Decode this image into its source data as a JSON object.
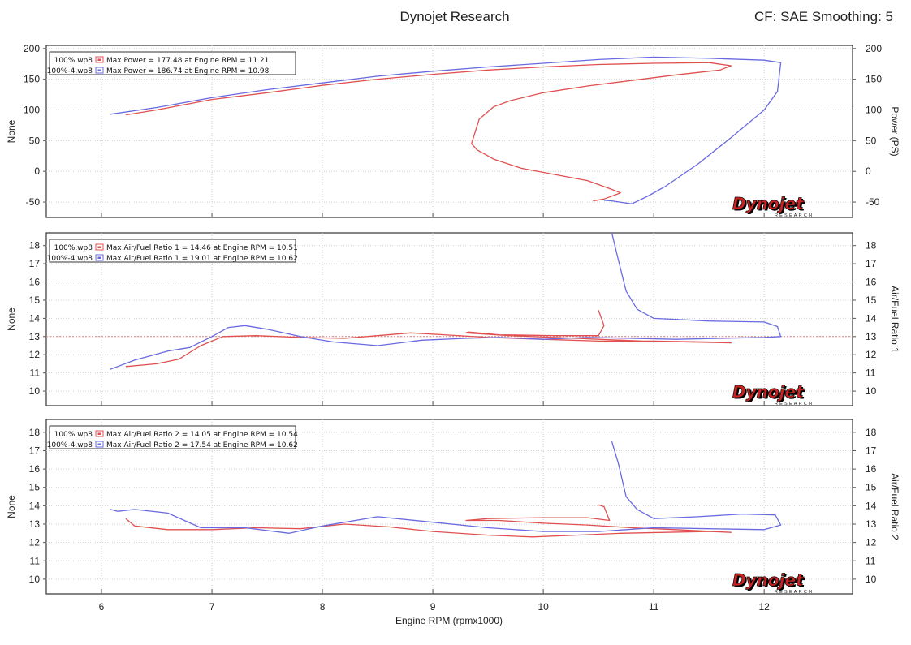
{
  "header": {
    "title": "Dynojet Research",
    "settings": "CF: SAE Smoothing: 5"
  },
  "xaxis": {
    "label": "Engine RPM (rpmx1000)",
    "range": [
      5.5,
      12.8
    ],
    "ticks": [
      6,
      7,
      8,
      9,
      10,
      11,
      12
    ]
  },
  "logo": {
    "brand": "Dynojet",
    "sub": "RESEARCH"
  },
  "colors": {
    "run1": "#e05050",
    "run2": "#6a6ae0"
  },
  "chart_data": [
    {
      "type": "line",
      "ylabel_left": "None",
      "ylabel_right": "Power (PS)",
      "ylim": [
        -75,
        205
      ],
      "yticks": [
        -50,
        0,
        50,
        100,
        150,
        200
      ],
      "legend": [
        {
          "run": "100%.wp8",
          "text": "Max Power = 177.48 at Engine RPM = 11.21"
        },
        {
          "run": "100%-4.wp8",
          "text": "Max Power = 186.74 at Engine RPM = 10.98"
        }
      ],
      "series": [
        {
          "name": "100%.wp8",
          "color": "#e05050",
          "x": [
            6.22,
            6.5,
            7.0,
            7.5,
            8.0,
            8.5,
            9.0,
            9.5,
            10.0,
            10.5,
            11.0,
            11.5,
            11.7,
            11.6,
            11.2,
            10.8,
            10.4,
            10.0,
            9.7,
            9.55,
            9.42,
            9.35,
            9.4,
            9.55,
            9.8,
            10.1,
            10.4,
            10.6,
            10.7,
            10.55,
            10.45
          ],
          "y": [
            92,
            100,
            117,
            128,
            140,
            150,
            158,
            165,
            170,
            174,
            176,
            177,
            172,
            165,
            157,
            148,
            139,
            128,
            115,
            105,
            85,
            45,
            35,
            20,
            5,
            -5,
            -15,
            -28,
            -35,
            -45,
            -48
          ]
        },
        {
          "name": "100%-4.wp8",
          "color": "#6a6ae0",
          "x": [
            6.08,
            6.5,
            7.0,
            7.5,
            8.0,
            8.5,
            9.0,
            9.5,
            10.0,
            10.5,
            11.0,
            11.5,
            12.0,
            12.15,
            12.12,
            12.0,
            11.7,
            11.4,
            11.1,
            10.95,
            10.8,
            10.62,
            10.55
          ],
          "y": [
            93,
            104,
            120,
            133,
            144,
            155,
            163,
            170,
            176,
            182,
            186,
            184,
            181,
            177,
            130,
            100,
            55,
            12,
            -25,
            -40,
            -53,
            -48,
            -47
          ]
        }
      ]
    },
    {
      "type": "line",
      "ylabel_left": "None",
      "ylabel_right": "Air/Fuel Ratio 1",
      "ylim": [
        9.2,
        18.7
      ],
      "yticks": [
        10,
        11,
        12,
        13,
        14,
        15,
        16,
        17,
        18
      ],
      "ref_line": 13,
      "legend": [
        {
          "run": "100%.wp8",
          "text": "Max Air/Fuel Ratio 1 = 14.46 at Engine RPM = 10.51"
        },
        {
          "run": "100%-4.wp8",
          "text": "Max Air/Fuel Ratio 1 = 19.01 at Engine RPM = 10.62"
        }
      ],
      "series": [
        {
          "name": "100%.wp8",
          "color": "#e05050",
          "x": [
            6.22,
            6.5,
            6.7,
            6.9,
            7.1,
            7.4,
            7.8,
            8.2,
            8.5,
            8.8,
            9.1,
            9.5,
            10.0,
            10.5,
            11.0,
            11.5,
            11.7,
            11.3,
            10.9,
            10.5,
            10.1,
            9.7,
            9.3,
            9.32,
            9.6,
            10.1,
            10.5,
            10.55,
            10.5
          ],
          "y": [
            11.35,
            11.5,
            11.75,
            12.5,
            13.0,
            13.05,
            12.95,
            12.9,
            13.05,
            13.2,
            13.1,
            12.95,
            12.85,
            12.75,
            12.75,
            12.7,
            12.65,
            12.7,
            12.75,
            12.85,
            12.95,
            13.05,
            13.2,
            13.25,
            13.1,
            13.05,
            13.05,
            13.6,
            14.45
          ]
        },
        {
          "name": "100%-4.wp8",
          "color": "#6a6ae0",
          "x": [
            6.08,
            6.3,
            6.6,
            6.8,
            7.0,
            7.15,
            7.3,
            7.5,
            7.8,
            8.1,
            8.5,
            8.9,
            9.3,
            9.6,
            10.0,
            10.4,
            10.8,
            11.2,
            11.6,
            12.0,
            12.15,
            12.12,
            12.0,
            11.5,
            11.0,
            10.85,
            10.75,
            10.68,
            10.62
          ],
          "y": [
            11.2,
            11.7,
            12.2,
            12.4,
            13.0,
            13.5,
            13.6,
            13.4,
            13.0,
            12.7,
            12.5,
            12.8,
            12.9,
            12.95,
            12.85,
            12.95,
            12.9,
            12.85,
            12.9,
            12.95,
            13.0,
            13.55,
            13.8,
            13.85,
            14.0,
            14.5,
            15.5,
            17.2,
            18.7
          ]
        }
      ]
    },
    {
      "type": "line",
      "ylabel_left": "None",
      "ylabel_right": "Air/Fuel Ratio 2",
      "ylim": [
        9.2,
        18.7
      ],
      "yticks": [
        10,
        11,
        12,
        13,
        14,
        15,
        16,
        17,
        18
      ],
      "legend": [
        {
          "run": "100%.wp8",
          "text": "Max Air/Fuel Ratio 2 = 14.05 at Engine RPM = 10.54"
        },
        {
          "run": "100%-4.wp8",
          "text": "Max Air/Fuel Ratio 2 = 17.54 at Engine RPM = 10.62"
        }
      ],
      "series": [
        {
          "name": "100%.wp8",
          "color": "#e05050",
          "x": [
            6.22,
            6.3,
            6.6,
            7.0,
            7.4,
            7.8,
            8.2,
            8.6,
            9.0,
            9.5,
            9.9,
            10.3,
            10.7,
            11.1,
            11.5,
            11.7,
            11.2,
            10.8,
            10.4,
            10.0,
            9.6,
            9.3,
            9.5,
            10.0,
            10.4,
            10.6,
            10.58,
            10.55,
            10.5
          ],
          "y": [
            13.3,
            12.9,
            12.7,
            12.7,
            12.8,
            12.75,
            13.0,
            12.85,
            12.6,
            12.4,
            12.3,
            12.4,
            12.5,
            12.55,
            12.6,
            12.55,
            12.7,
            12.8,
            12.95,
            13.05,
            13.2,
            13.2,
            13.3,
            13.35,
            13.35,
            13.2,
            13.5,
            13.95,
            14.05
          ]
        },
        {
          "name": "100%-4.wp8",
          "color": "#6a6ae0",
          "x": [
            6.08,
            6.15,
            6.3,
            6.6,
            6.9,
            7.3,
            7.7,
            8.0,
            8.5,
            9.0,
            9.5,
            10.0,
            10.5,
            11.0,
            11.5,
            12.0,
            12.15,
            12.1,
            11.8,
            11.4,
            11.0,
            10.85,
            10.75,
            10.68,
            10.62
          ],
          "y": [
            13.8,
            13.7,
            13.8,
            13.6,
            12.8,
            12.8,
            12.5,
            12.9,
            13.4,
            13.1,
            12.8,
            12.6,
            12.6,
            12.8,
            12.75,
            12.7,
            12.95,
            13.5,
            13.55,
            13.4,
            13.3,
            13.8,
            14.5,
            16.3,
            17.5
          ]
        }
      ]
    }
  ]
}
